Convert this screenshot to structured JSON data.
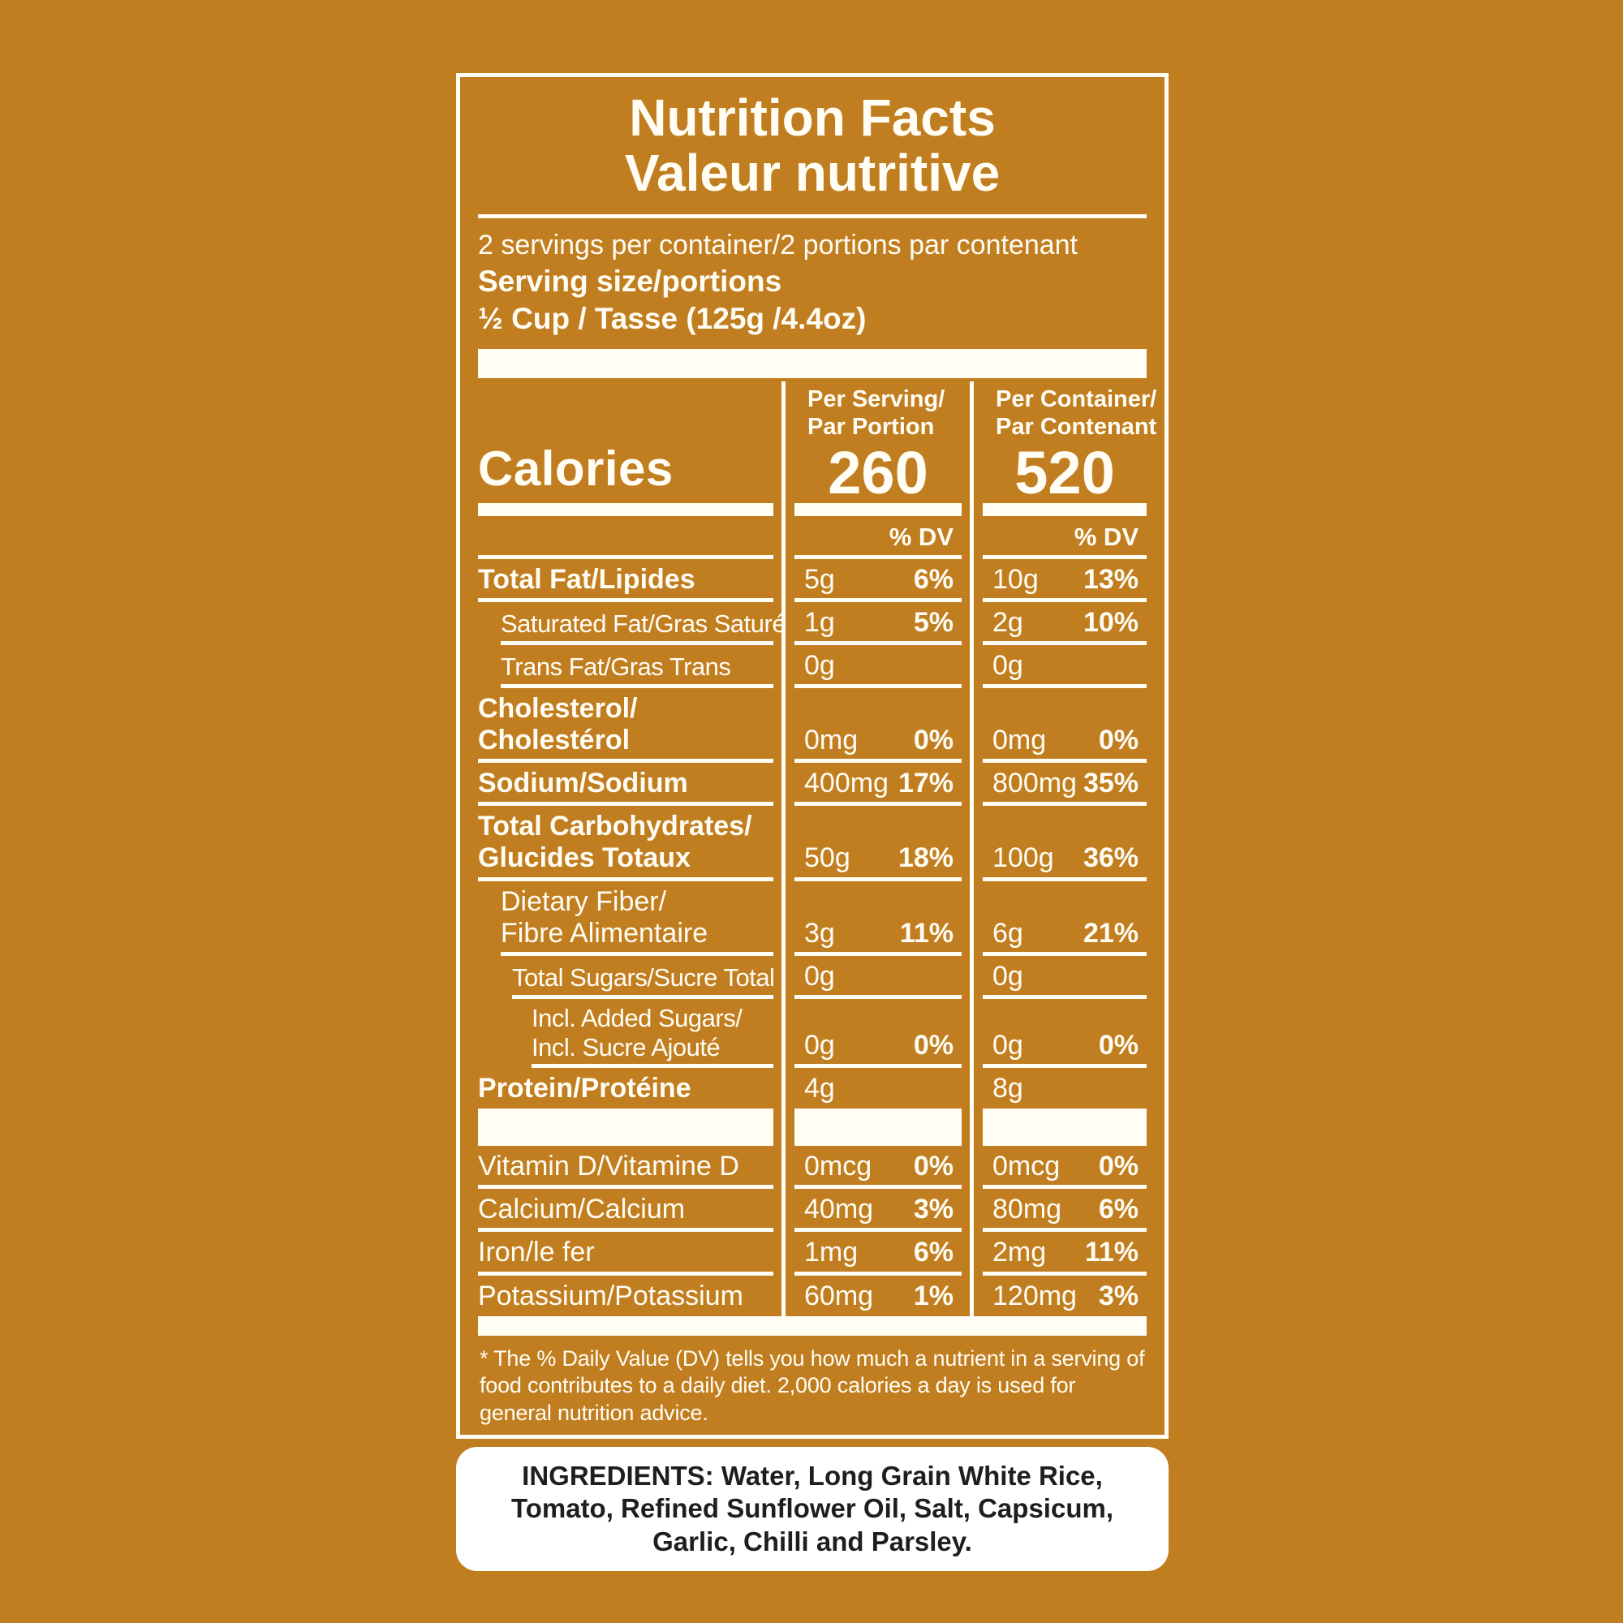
{
  "colors": {
    "background": "#C17E20",
    "label_foreground": "#FFFDF4",
    "ingredients_background": "#FFFFFF",
    "ingredients_text": "#1E1E1E"
  },
  "label": {
    "title_line1": "Nutrition Facts",
    "title_line2": "Valeur nutritive",
    "servings_per_container": "2 servings per container/2 portions par contenant",
    "serving_size_label": "Serving size/portions",
    "serving_size_value": "½ Cup / Tasse (125g /4.4oz)",
    "calories": {
      "name": "Calories",
      "per_serving_heading_line1": "Per Serving/",
      "per_serving_heading_line2": "Par Portion",
      "per_serving_value": "260",
      "per_container_heading_line1": "Per Container/",
      "per_container_heading_line2": "Par Contenant",
      "per_container_value": "520"
    },
    "dv_heading": "% DV",
    "nutrient_rows": [
      {
        "label_lines": [
          "Total Fat/Lipides"
        ],
        "serving_amount": "5g",
        "serving_dv": "6%",
        "container_amount": "10g",
        "container_dv": "13%"
      },
      {
        "label_lines": [
          "Saturated Fat/Gras Saturé"
        ],
        "serving_amount": "1g",
        "serving_dv": "5%",
        "container_amount": "2g",
        "container_dv": "10%"
      },
      {
        "label_lines": [
          "Trans Fat/Gras Trans"
        ],
        "serving_amount": "0g",
        "serving_dv": "",
        "container_amount": "0g",
        "container_dv": ""
      },
      {
        "label_lines": [
          "Cholesterol/",
          "Cholestérol"
        ],
        "serving_amount": "0mg",
        "serving_dv": "0%",
        "container_amount": "0mg",
        "container_dv": "0%"
      },
      {
        "label_lines": [
          "Sodium/Sodium"
        ],
        "serving_amount": "400mg",
        "serving_dv": "17%",
        "container_amount": "800mg",
        "container_dv": "35%"
      },
      {
        "label_lines": [
          "Total Carbohydrates/",
          "Glucides Totaux"
        ],
        "serving_amount": "50g",
        "serving_dv": "18%",
        "container_amount": "100g",
        "container_dv": "36%"
      },
      {
        "label_lines": [
          "Dietary Fiber/",
          "Fibre Alimentaire"
        ],
        "serving_amount": "3g",
        "serving_dv": "11%",
        "container_amount": "6g",
        "container_dv": "21%"
      },
      {
        "label_lines": [
          "Total Sugars/Sucre Total"
        ],
        "serving_amount": "0g",
        "serving_dv": "",
        "container_amount": "0g",
        "container_dv": ""
      },
      {
        "label_lines": [
          "Incl. Added Sugars/",
          "Incl. Sucre Ajouté"
        ],
        "serving_amount": "0g",
        "serving_dv": "0%",
        "container_amount": "0g",
        "container_dv": "0%"
      },
      {
        "label_lines": [
          "Protein/Protéine"
        ],
        "serving_amount": "4g",
        "serving_dv": "",
        "container_amount": "8g",
        "container_dv": ""
      }
    ],
    "micronutrient_rows": [
      {
        "label_lines": [
          "Vitamin D/Vitamine D"
        ],
        "serving_amount": "0mcg",
        "serving_dv": "0%",
        "container_amount": "0mcg",
        "container_dv": "0%"
      },
      {
        "label_lines": [
          "Calcium/Calcium"
        ],
        "serving_amount": "40mg",
        "serving_dv": "3%",
        "container_amount": "80mg",
        "container_dv": "6%"
      },
      {
        "label_lines": [
          "Iron/le fer"
        ],
        "serving_amount": "1mg",
        "serving_dv": "6%",
        "container_amount": "2mg",
        "container_dv": "11%"
      },
      {
        "label_lines": [
          "Potassium/Potassium"
        ],
        "serving_amount": "60mg",
        "serving_dv": "1%",
        "container_amount": "120mg",
        "container_dv": "3%"
      }
    ],
    "footnote": "* The % Daily Value (DV) tells you how much a nutrient in a serving of food contributes to a daily diet. 2,000 calories a day is used for general nutrition advice."
  },
  "ingredients": {
    "text": "INGREDIENTS: Water, Long Grain White Rice, Tomato, Refined Sunflower Oil, Salt, Capsicum, Garlic, Chilli and Parsley."
  }
}
